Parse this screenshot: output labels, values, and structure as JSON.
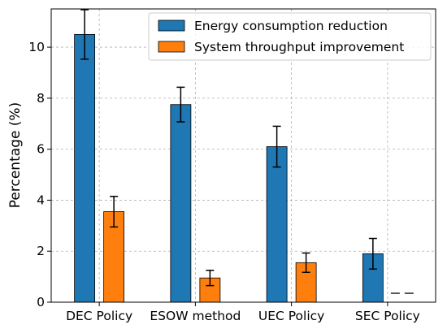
{
  "chart_data": {
    "type": "bar",
    "title": "",
    "xlabel": "",
    "ylabel": "Percentage (%)",
    "ylim": [
      0,
      11.5
    ],
    "yticks": [
      0,
      2,
      4,
      6,
      8,
      10
    ],
    "ytick_labels": [
      "0",
      "2",
      "4",
      "6",
      "8",
      "10"
    ],
    "grid": true,
    "legend_position": "top-right",
    "categories": [
      "DEC Policy",
      "ESOW method",
      "UEC Policy",
      "SEC Policy"
    ],
    "series": [
      {
        "name": "Energy consumption reduction",
        "color": "#1f77b4",
        "values": [
          10.5,
          7.75,
          6.1,
          1.9
        ],
        "errors": [
          0.97,
          0.68,
          0.8,
          0.6
        ]
      },
      {
        "name": "System throughput improvement",
        "color": "#ff7f0e",
        "values": [
          3.55,
          0.95,
          1.55,
          null
        ],
        "errors": [
          0.6,
          0.3,
          0.38,
          null
        ]
      }
    ],
    "annotations": [
      {
        "text": "— —",
        "category": "SEC Policy",
        "series": "System throughput improvement",
        "meaning": "no value"
      }
    ]
  }
}
